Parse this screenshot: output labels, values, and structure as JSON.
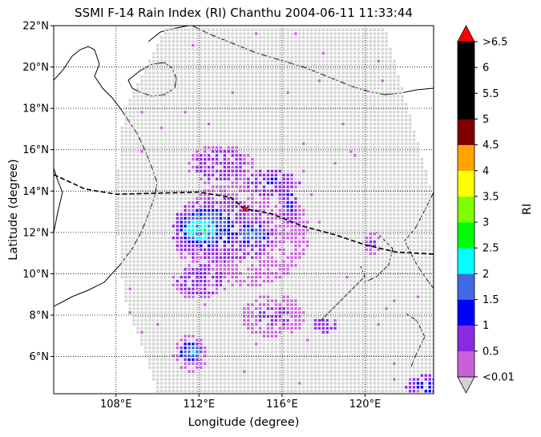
{
  "chart_data": {
    "type": "heatmap",
    "title": "SSMI F-14 Rain Index (RI) Chanthu 2004-06-11 11:33:44",
    "xlabel": "Longitude (degree)",
    "ylabel": "Latitude (degree)",
    "xlim": [
      105,
      123.3
    ],
    "ylim": [
      4.2,
      22
    ],
    "x_ticks": [
      108,
      112,
      116,
      120
    ],
    "x_tick_labels": [
      "108°E",
      "112°E",
      "116°E",
      "120°E"
    ],
    "y_ticks": [
      6,
      8,
      10,
      12,
      14,
      16,
      18,
      20,
      22
    ],
    "y_tick_labels": [
      "6°N",
      "8°N",
      "10°N",
      "12°N",
      "14°N",
      "16°N",
      "18°N",
      "20°N",
      "22°N"
    ],
    "grid": true,
    "colorbar": {
      "label": "RI",
      "tick_labels": [
        "<0.01",
        "0.5",
        "1",
        "1.5",
        "2",
        "2.5",
        "3",
        "3.5",
        "4",
        "4.5",
        "5",
        "5.5",
        "6",
        ">6.5"
      ],
      "colors": [
        "#c860d8",
        "#8a2be2",
        "#0000ff",
        "#4169e1",
        "#00ffff",
        "#00ff00",
        "#7fff00",
        "#ffff00",
        "#ffa500",
        "#800000",
        "#000000",
        "#000000",
        "#000000"
      ],
      "under_color": "#d3d3d3",
      "over_color": "#ff0000"
    },
    "no_rain_color": "#d3d3d3",
    "track": {
      "style": "dashed",
      "color": "#000000",
      "points": [
        [
          105,
          14.8
        ],
        [
          106.5,
          14.1
        ],
        [
          108,
          13.85
        ],
        [
          110,
          13.9
        ],
        [
          112,
          13.95
        ],
        [
          113.5,
          13.7
        ],
        [
          114.2,
          13.15
        ],
        [
          115.5,
          12.9
        ],
        [
          117,
          12.3
        ],
        [
          118.5,
          11.9
        ],
        [
          120,
          11.4
        ],
        [
          121.5,
          11.05
        ],
        [
          123.3,
          10.95
        ]
      ]
    },
    "storm_center": {
      "lon": 114.2,
      "lat": 13.15,
      "marker": "star",
      "color": "#ff0000"
    },
    "swath_corners": [
      [
        110.3,
        21.9
      ],
      [
        120.9,
        21.9
      ],
      [
        123.3,
        13.5
      ],
      [
        123.3,
        4.2
      ],
      [
        110.0,
        4.2
      ],
      [
        108.3,
        9.0
      ],
      [
        107.9,
        13.5
      ],
      [
        108.3,
        18.0
      ]
    ],
    "rain_regions": [
      {
        "lon": 112.0,
        "lat": 12.2,
        "rx": 0.9,
        "ry": 0.55,
        "ri": 2.8
      },
      {
        "lon": 112.3,
        "lat": 12.3,
        "rx": 1.4,
        "ry": 0.9,
        "ri": 2.1
      },
      {
        "lon": 112.8,
        "lat": 12.2,
        "rx": 2.2,
        "ry": 1.6,
        "ri": 1.2
      },
      {
        "lon": 114.0,
        "lat": 12.0,
        "rx": 3.3,
        "ry": 2.6,
        "ri": 0.6
      },
      {
        "lon": 114.5,
        "lat": 12.0,
        "rx": 0.8,
        "ry": 0.45,
        "ri": 2.1
      },
      {
        "lon": 115.5,
        "lat": 14.5,
        "rx": 1.3,
        "ry": 0.7,
        "ri": 1.1
      },
      {
        "lon": 116.3,
        "lat": 13.5,
        "rx": 0.4,
        "ry": 1.2,
        "ri": 1.2
      },
      {
        "lon": 113.0,
        "lat": 15.3,
        "rx": 1.6,
        "ry": 1.0,
        "ri": 0.7
      },
      {
        "lon": 115.5,
        "lat": 8.0,
        "rx": 1.6,
        "ry": 1.1,
        "ri": 0.6
      },
      {
        "lon": 112.0,
        "lat": 9.8,
        "rx": 1.4,
        "ry": 1.0,
        "ri": 0.7
      },
      {
        "lon": 111.6,
        "lat": 6.3,
        "rx": 0.6,
        "ry": 0.45,
        "ri": 2.1
      },
      {
        "lon": 111.5,
        "lat": 6.2,
        "rx": 0.9,
        "ry": 0.9,
        "ri": 0.6
      },
      {
        "lon": 122.8,
        "lat": 4.6,
        "rx": 0.9,
        "ry": 0.6,
        "ri": 1.2
      },
      {
        "lon": 118.0,
        "lat": 7.6,
        "rx": 0.6,
        "ry": 0.4,
        "ri": 0.9
      },
      {
        "lon": 120.3,
        "lat": 11.5,
        "rx": 0.4,
        "ry": 0.6,
        "ri": 0.6
      }
    ]
  }
}
